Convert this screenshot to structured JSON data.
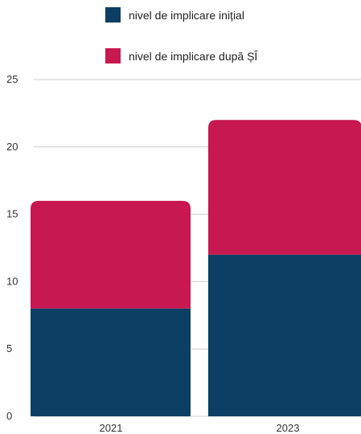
{
  "chart_data": {
    "type": "bar",
    "stacked": true,
    "categories": [
      "2021",
      "2023"
    ],
    "series": [
      {
        "name": "nivel de implicare inițial",
        "values": [
          8,
          12
        ],
        "color": "#0d3e64"
      },
      {
        "name": "nivel de implicare după ȘÎ",
        "values": [
          8,
          10
        ],
        "color": "#c71851"
      }
    ],
    "y_ticks": [
      "0",
      "5",
      "10",
      "15",
      "20",
      "25"
    ],
    "ylim": [
      0,
      25
    ],
    "grid": true,
    "legend_position": "top"
  }
}
